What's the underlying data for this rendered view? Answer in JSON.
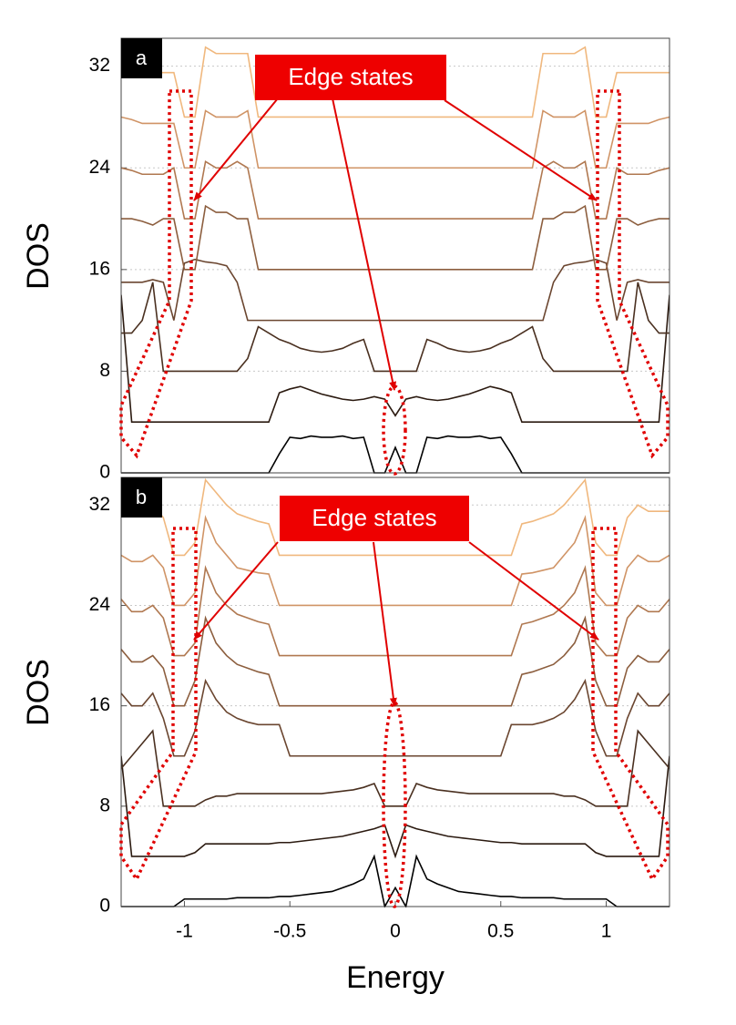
{
  "chart_data": [
    {
      "type": "line",
      "label": "a",
      "annotation": "Edge states",
      "ylabel": "DOS",
      "xlim": [
        -1.3,
        1.3
      ],
      "ylim": [
        0,
        34.2
      ],
      "yticks": [
        0,
        8,
        16,
        24,
        32
      ],
      "grid": true,
      "x": [
        -1.3,
        -1.25,
        -1.2,
        -1.15,
        -1.1,
        -1.05,
        -1,
        -0.95,
        -0.9,
        -0.85,
        -0.8,
        -0.75,
        -0.7,
        -0.65,
        -0.6,
        -0.55,
        -0.5,
        -0.45,
        -0.4,
        -0.35,
        -0.3,
        -0.25,
        -0.2,
        -0.15,
        -0.1,
        -0.05,
        0,
        0.05,
        0.1,
        0.15,
        0.2,
        0.25,
        0.3,
        0.35,
        0.4,
        0.45,
        0.5,
        0.55,
        0.6,
        0.65,
        0.7,
        0.75,
        0.8,
        0.85,
        0.9,
        0.95,
        1,
        1.05,
        1.1,
        1.15,
        1.2,
        1.25,
        1.3
      ],
      "series": [
        {
          "color": "#000000",
          "values": [
            0,
            0,
            0,
            0,
            0,
            0,
            0,
            0,
            0,
            0,
            0,
            0,
            0,
            0,
            0,
            1.5,
            2.8,
            2.7,
            2.9,
            2.8,
            2.8,
            2.9,
            2.7,
            2.8,
            0,
            0,
            2,
            0,
            0,
            2.8,
            2.7,
            2.9,
            2.8,
            2.8,
            2.9,
            2.7,
            2.8,
            1.5,
            0,
            0,
            0,
            0,
            0,
            0,
            0,
            0,
            0,
            0,
            0,
            0,
            0,
            0,
            0
          ]
        },
        {
          "color": "#2b1a10",
          "values": [
            14,
            4,
            4,
            4,
            4,
            4,
            4,
            4,
            4,
            4,
            4,
            4,
            4,
            4,
            4,
            6.3,
            6.6,
            6.8,
            6.5,
            6.2,
            6,
            5.8,
            5.7,
            5.8,
            6,
            5.8,
            4.5,
            5.8,
            6,
            5.8,
            5.7,
            5.8,
            6,
            6.2,
            6.5,
            6.8,
            6.6,
            6.3,
            4,
            4,
            4,
            4,
            4,
            4,
            4,
            4,
            4,
            4,
            4,
            4,
            4,
            4,
            14
          ]
        },
        {
          "color": "#4a3020",
          "values": [
            11,
            11,
            12,
            15,
            8,
            8,
            8,
            8,
            8,
            8,
            8,
            8,
            9,
            11.5,
            11,
            10.5,
            10.2,
            9.8,
            9.6,
            9.5,
            9.6,
            9.8,
            10.2,
            10.5,
            8,
            8,
            8,
            8,
            8,
            10.5,
            10.2,
            9.8,
            9.6,
            9.5,
            9.6,
            9.8,
            10.2,
            10.5,
            11,
            11.5,
            9,
            8,
            8,
            8,
            8,
            8,
            8,
            8,
            8,
            15,
            12,
            11,
            11
          ]
        },
        {
          "color": "#6b4630",
          "values": [
            15,
            15,
            15,
            15.2,
            15,
            12,
            16.5,
            16.8,
            16.6,
            16.5,
            16.3,
            15,
            12,
            12,
            12,
            12,
            12,
            12,
            12,
            12,
            12,
            12,
            12,
            12,
            12,
            12,
            12,
            12,
            12,
            12,
            12,
            12,
            12,
            12,
            12,
            12,
            12,
            12,
            12,
            12,
            12,
            15,
            16.3,
            16.5,
            16.6,
            16.8,
            16.5,
            12,
            15,
            15.2,
            15,
            15,
            15
          ]
        },
        {
          "color": "#8c5e3e",
          "values": [
            20,
            20,
            19.8,
            19.5,
            20,
            20,
            16,
            16,
            21,
            20.5,
            20.5,
            20,
            20,
            16,
            16,
            16,
            16,
            16,
            16,
            16,
            16,
            16,
            16,
            16,
            16,
            16,
            16,
            16,
            16,
            16,
            16,
            16,
            16,
            16,
            16,
            16,
            16,
            16,
            16,
            16,
            20,
            20,
            20.5,
            20.5,
            21,
            16,
            16,
            20,
            20,
            19.5,
            19.8,
            20,
            20
          ]
        },
        {
          "color": "#b07850",
          "values": [
            24,
            23.8,
            23.5,
            23.5,
            23.5,
            24,
            20,
            20,
            24.5,
            24,
            24,
            24.5,
            24,
            20,
            20,
            20,
            20,
            20,
            20,
            20,
            20,
            20,
            20,
            20,
            20,
            20,
            20,
            20,
            20,
            20,
            20,
            20,
            20,
            20,
            20,
            20,
            20,
            20,
            20,
            20,
            24,
            24.5,
            24,
            24,
            24.5,
            20,
            20,
            24,
            23.5,
            23.5,
            23.5,
            23.8,
            24
          ]
        },
        {
          "color": "#d09466",
          "values": [
            28,
            27.8,
            27.5,
            27.5,
            27.5,
            27.5,
            24,
            24,
            28.5,
            28,
            28,
            28,
            28.5,
            24,
            24,
            24,
            24,
            24,
            24,
            24,
            24,
            24,
            24,
            24,
            24,
            24,
            24,
            24,
            24,
            24,
            24,
            24,
            24,
            24,
            24,
            24,
            24,
            24,
            24,
            24,
            28.5,
            28,
            28,
            28,
            28.5,
            24,
            24,
            27.5,
            27.5,
            27.5,
            27.5,
            27.8,
            28
          ]
        },
        {
          "color": "#f0b87e",
          "values": [
            31.5,
            31.5,
            31.5,
            31.5,
            31.5,
            31.5,
            28,
            28,
            33.5,
            33,
            33,
            33,
            33,
            28,
            28,
            28,
            28,
            28,
            28,
            28,
            28,
            28,
            28,
            28,
            28,
            28,
            28,
            28,
            28,
            28,
            28,
            28,
            28,
            28,
            28,
            28,
            28,
            28,
            28,
            28,
            33,
            33,
            33,
            33,
            33.5,
            28,
            28,
            31.5,
            31.5,
            31.5,
            31.5,
            31.5,
            31.5
          ]
        }
      ]
    },
    {
      "type": "line",
      "label": "b",
      "annotation": "Edge states",
      "ylabel": "DOS",
      "xlabel": "Energy",
      "xlim": [
        -1.3,
        1.3
      ],
      "ylim": [
        0,
        34.2
      ],
      "yticks": [
        0,
        8,
        16,
        24,
        32
      ],
      "xticks": [
        -1,
        -0.5,
        0,
        0.5,
        1
      ],
      "grid": true,
      "x": [
        -1.3,
        -1.25,
        -1.2,
        -1.15,
        -1.1,
        -1.05,
        -1,
        -0.95,
        -0.9,
        -0.85,
        -0.8,
        -0.75,
        -0.7,
        -0.65,
        -0.6,
        -0.55,
        -0.5,
        -0.45,
        -0.4,
        -0.35,
        -0.3,
        -0.25,
        -0.2,
        -0.15,
        -0.1,
        -0.05,
        0,
        0.05,
        0.1,
        0.15,
        0.2,
        0.25,
        0.3,
        0.35,
        0.4,
        0.45,
        0.5,
        0.55,
        0.6,
        0.65,
        0.7,
        0.75,
        0.8,
        0.85,
        0.9,
        0.95,
        1,
        1.05,
        1.1,
        1.15,
        1.2,
        1.25,
        1.3
      ],
      "series": [
        {
          "color": "#000000",
          "values": [
            0,
            0,
            0,
            0,
            0,
            0,
            0.6,
            0.6,
            0.6,
            0.6,
            0.6,
            0.7,
            0.7,
            0.7,
            0.7,
            0.8,
            0.8,
            0.9,
            1,
            1.1,
            1.2,
            1.5,
            1.8,
            2.2,
            4,
            0,
            1.5,
            0,
            4,
            2.2,
            1.8,
            1.5,
            1.2,
            1.1,
            1,
            0.9,
            0.8,
            0.8,
            0.7,
            0.7,
            0.7,
            0.7,
            0.6,
            0.6,
            0.6,
            0.6,
            0.6,
            0,
            0,
            0,
            0,
            0,
            0
          ]
        },
        {
          "color": "#2b1a10",
          "values": [
            12,
            4,
            4,
            4,
            4,
            4,
            4,
            4.3,
            5,
            5,
            5,
            5,
            5,
            5,
            5,
            5.1,
            5.1,
            5.2,
            5.3,
            5.4,
            5.5,
            5.6,
            5.8,
            6,
            6.2,
            6.5,
            4,
            6.5,
            6.2,
            6,
            5.8,
            5.6,
            5.5,
            5.4,
            5.3,
            5.2,
            5.1,
            5.1,
            5,
            5,
            5,
            5,
            5,
            5,
            5,
            4.3,
            4,
            4,
            4,
            4,
            4,
            4,
            12
          ]
        },
        {
          "color": "#4a3020",
          "values": [
            11,
            12,
            13,
            14,
            8,
            8,
            8,
            8,
            8.5,
            8.8,
            8.8,
            9,
            9,
            9,
            9,
            9,
            9,
            9,
            9,
            9,
            9.1,
            9.2,
            9.3,
            9.5,
            9.8,
            8,
            8,
            8,
            9.8,
            9.5,
            9.3,
            9.2,
            9.1,
            9,
            9,
            9,
            9,
            9,
            9,
            9,
            9,
            9,
            8.8,
            8.8,
            8.5,
            8,
            8,
            8,
            8,
            14,
            13,
            12,
            11
          ]
        },
        {
          "color": "#6b4630",
          "values": [
            17,
            16,
            16,
            17,
            15,
            12,
            12,
            14,
            18,
            16.5,
            15.5,
            15,
            14.7,
            14.5,
            14.5,
            14.5,
            12,
            12,
            12,
            12,
            12,
            12,
            12,
            12,
            12,
            12,
            12,
            12,
            12,
            12,
            12,
            12,
            12,
            12,
            12,
            12,
            12,
            14.5,
            14.5,
            14.5,
            14.7,
            15,
            15.5,
            16.5,
            18,
            14,
            12,
            12,
            15,
            17,
            16,
            16,
            17
          ]
        },
        {
          "color": "#8c5e3e",
          "values": [
            20.5,
            19.5,
            19.5,
            20,
            19,
            16,
            16,
            18,
            23,
            21,
            20,
            19.3,
            19,
            18.7,
            18.5,
            16,
            16,
            16,
            16,
            16,
            16,
            16,
            16,
            16,
            16,
            16,
            16,
            16,
            16,
            16,
            16,
            16,
            16,
            16,
            16,
            16,
            16,
            16,
            18.5,
            18.7,
            19,
            19.3,
            20,
            21,
            23,
            18,
            16,
            16,
            19,
            20,
            19.5,
            19.5,
            20.5
          ]
        },
        {
          "color": "#b07850",
          "values": [
            24.5,
            23.5,
            23.5,
            24,
            23,
            20,
            20,
            21,
            27,
            25,
            24,
            23.3,
            23,
            22.7,
            22.5,
            20,
            20,
            20,
            20,
            20,
            20,
            20,
            20,
            20,
            20,
            20,
            20,
            20,
            20,
            20,
            20,
            20,
            20,
            20,
            20,
            20,
            20,
            20,
            22.5,
            22.7,
            23,
            23.3,
            24,
            25,
            27,
            21,
            20,
            20,
            23,
            24,
            23.5,
            23.5,
            24.5
          ]
        },
        {
          "color": "#d09466",
          "values": [
            28,
            27.5,
            27.5,
            28,
            27,
            24,
            24,
            25,
            31,
            29,
            28,
            27,
            26.8,
            26.6,
            26.5,
            24,
            24,
            24,
            24,
            24,
            24,
            24,
            24,
            24,
            24,
            24,
            24,
            24,
            24,
            24,
            24,
            24,
            24,
            24,
            24,
            24,
            24,
            24,
            26.5,
            26.6,
            26.8,
            27,
            28,
            29,
            31,
            25,
            24,
            24,
            27,
            28,
            27.5,
            27.5,
            28
          ]
        },
        {
          "color": "#f0b87e",
          "values": [
            31.5,
            31.5,
            31.5,
            32,
            31,
            28,
            28,
            29,
            34,
            33,
            32,
            31.3,
            31,
            30.7,
            30.5,
            28,
            28,
            28,
            28,
            28,
            28,
            28,
            28,
            28,
            28,
            28,
            28,
            28,
            28,
            28,
            28,
            28,
            28,
            28,
            28,
            28,
            28,
            28,
            30.5,
            30.7,
            31,
            31.3,
            32,
            33,
            34,
            29,
            28,
            28,
            31,
            32,
            31.5,
            31.5,
            31.5
          ]
        }
      ]
    }
  ]
}
